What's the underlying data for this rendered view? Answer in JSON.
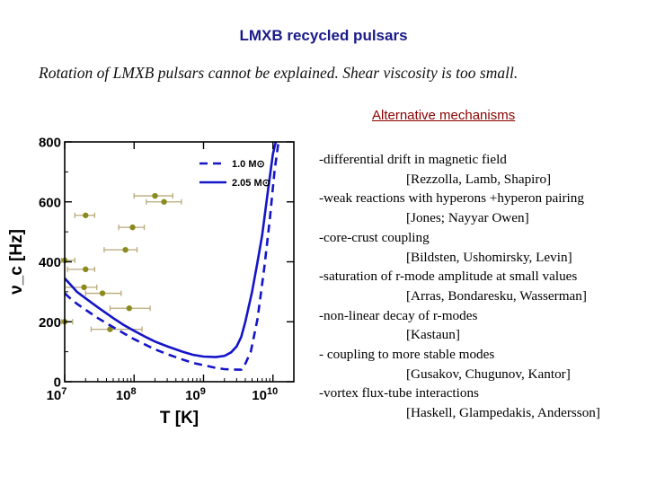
{
  "slide": {
    "title": "LMXB recycled pulsars",
    "subtitle": "Rotation of LMXB pulsars cannot be explained. Shear viscosity is too small.",
    "alt_heading": "Alternative mechanisms",
    "mechanisms": [
      {
        "text": "-differential drift in magnetic field",
        "refs": "[Rezzolla, Lamb, Shapiro]"
      },
      {
        "text": "-weak reactions with hyperons +hyperon pairing",
        "refs": "[Jones; Nayyar Owen]"
      },
      {
        "text": "-core-crust coupling",
        "refs": "[Bildsten, Ushomirsky, Levin]"
      },
      {
        "text": "-saturation of r-mode amplitude at small values",
        "refs": "[Arras, Bondaresku, Wasserman]"
      },
      {
        "text": "-non-linear decay of r-modes",
        "refs": "[Kastaun]"
      },
      {
        "text": "- coupling to more stable modes",
        "refs": "[Gusakov, Chugunov, Kantor]"
      },
      {
        "text": "-vortex flux-tube interactions",
        "refs": "[Haskell, Glampedakis, Andersson]"
      }
    ]
  },
  "chart_data": {
    "type": "line",
    "xlabel": "T [K]",
    "ylabel": "ν_c [Hz]",
    "x_scale": "log",
    "xlim": [
      10000000,
      20000000000
    ],
    "ylim": [
      0,
      800
    ],
    "x_ticks": [
      {
        "value": 10000000,
        "base": "10",
        "exp": "7"
      },
      {
        "value": 100000000,
        "base": "10",
        "exp": "8"
      },
      {
        "value": 1000000000,
        "base": "10",
        "exp": "9"
      },
      {
        "value": 10000000000,
        "base": "10",
        "exp": "10"
      }
    ],
    "y_ticks": [
      0,
      200,
      400,
      600,
      800
    ],
    "legend_position": "top-right",
    "series": [
      {
        "name": "1.0 M⊙",
        "style": "dashed",
        "color": "#1414c8",
        "x": [
          10000000,
          12000000,
          15000000,
          20000000,
          30000000,
          50000000,
          70000000,
          100000000,
          150000000,
          200000000,
          300000000,
          500000000,
          700000000,
          1000000000,
          1500000000,
          2000000000,
          3000000000,
          3500000000,
          4000000000,
          4800000000,
          6000000000,
          7500000000,
          9000000000,
          10500000000,
          12000000000
        ],
        "y": [
          295,
          278,
          260,
          240,
          212,
          182,
          162,
          142,
          122,
          108,
          92,
          74,
          63,
          55,
          46,
          42,
          40,
          40,
          60,
          100,
          210,
          380,
          540,
          700,
          800
        ]
      },
      {
        "name": "2.05 M⊙",
        "style": "solid",
        "color": "#1414c8",
        "x": [
          10000000,
          12000000,
          15000000,
          20000000,
          30000000,
          50000000,
          70000000,
          100000000,
          150000000,
          200000000,
          300000000,
          500000000,
          700000000,
          1000000000,
          1500000000,
          2000000000,
          2500000000,
          3000000000,
          3500000000,
          4000000000,
          5000000000,
          6000000000,
          7000000000,
          8500000000,
          10000000000,
          11000000000
        ],
        "y": [
          345,
          325,
          300,
          278,
          248,
          212,
          190,
          170,
          148,
          134,
          118,
          100,
          90,
          84,
          82,
          86,
          98,
          118,
          150,
          200,
          300,
          400,
          490,
          640,
          760,
          800
        ]
      }
    ],
    "points": [
      {
        "x": 20000000,
        "y": 555,
        "xerr": [
          14000000,
          27000000
        ]
      },
      {
        "x": 20000000,
        "y": 375,
        "xerr": [
          11000000,
          27000000
        ]
      },
      {
        "x": 19000000,
        "y": 315,
        "xerr": [
          10000000,
          29000000
        ]
      },
      {
        "x": 35000000,
        "y": 295,
        "xerr": [
          20000000,
          65000000
        ]
      },
      {
        "x": 75000000,
        "y": 440,
        "xerr": [
          37000000,
          110000000
        ]
      },
      {
        "x": 85000000,
        "y": 245,
        "xerr": [
          45000000,
          170000000
        ]
      },
      {
        "x": 45000000,
        "y": 175,
        "xerr": [
          24000000,
          130000000
        ]
      },
      {
        "x": 95000000,
        "y": 515,
        "xerr": [
          60000000,
          140000000
        ]
      },
      {
        "x": 200000000,
        "y": 620,
        "xerr": [
          100000000,
          360000000
        ]
      },
      {
        "x": 270000000,
        "y": 600,
        "xerr": [
          150000000,
          480000000
        ]
      },
      {
        "x": 10000000,
        "y": 200,
        "xerr": [
          9000000,
          13000000
        ]
      },
      {
        "x": 10000000,
        "y": 405,
        "xerr": [
          9000000,
          14000000
        ]
      }
    ],
    "colors": {
      "curve": "#1414c8",
      "points": "#8a8a1e",
      "errorbar": "#b8a97a"
    }
  }
}
